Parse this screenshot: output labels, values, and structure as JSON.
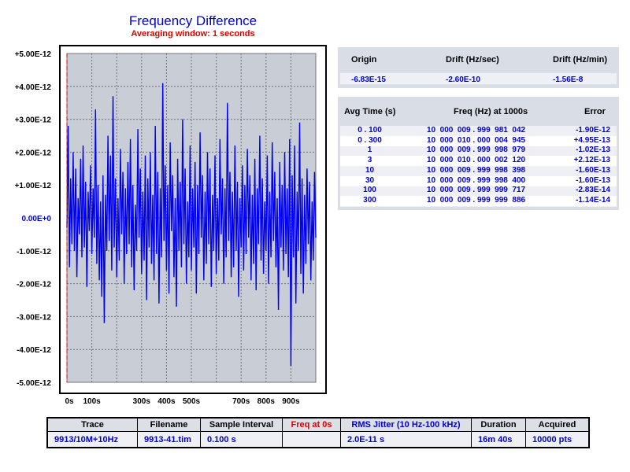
{
  "chart_data": {
    "type": "line",
    "title": "Frequency Difference",
    "subtitle": "Averaging window: 1 seconds",
    "xlabel": "",
    "ylabel": "",
    "xlim": [
      0,
      1000
    ],
    "ylim": [
      -5e-12,
      5e-12
    ],
    "x_tick_labels": [
      "0s",
      "100s",
      "300s",
      "400s",
      "500s",
      "700s",
      "800s",
      "900s"
    ],
    "x_tick_values": [
      0,
      100,
      300,
      400,
      500,
      700,
      800,
      900
    ],
    "y_tick_labels": [
      "+5.00E-12",
      "+4.00E-12",
      "+3.00E-12",
      "+2.00E-12",
      "+1.00E-12",
      "0.00E+0",
      "-1.00E-12",
      "-2.00E-12",
      "-3.00E-12",
      "-4.00E-12",
      "-5.00E-12"
    ],
    "y_tick_values": [
      5e-12,
      4e-12,
      3e-12,
      2e-12,
      1e-12,
      0,
      -1e-12,
      -2e-12,
      -3e-12,
      -4e-12,
      -5e-12
    ],
    "grid": true,
    "marker_line": {
      "x": 0,
      "color": "#dd0000",
      "style": "dashed"
    },
    "series": [
      {
        "color": "#0000ee",
        "x": [
          0,
          5,
          10,
          15,
          20,
          25,
          30,
          35,
          40,
          45,
          50,
          55,
          60,
          65,
          70,
          75,
          80,
          85,
          90,
          95,
          100,
          105,
          110,
          115,
          120,
          125,
          130,
          135,
          140,
          145,
          150,
          155,
          160,
          165,
          170,
          175,
          180,
          185,
          190,
          195,
          200,
          205,
          210,
          215,
          220,
          225,
          230,
          235,
          240,
          245,
          250,
          255,
          260,
          265,
          270,
          275,
          280,
          285,
          290,
          295,
          300,
          305,
          310,
          315,
          320,
          325,
          330,
          335,
          340,
          345,
          350,
          355,
          360,
          365,
          370,
          375,
          380,
          385,
          390,
          395,
          400,
          405,
          410,
          415,
          420,
          425,
          430,
          435,
          440,
          445,
          450,
          455,
          460,
          465,
          470,
          475,
          480,
          485,
          490,
          495,
          500,
          505,
          510,
          515,
          520,
          525,
          530,
          535,
          540,
          545,
          550,
          555,
          560,
          565,
          570,
          575,
          580,
          585,
          590,
          595,
          600,
          605,
          610,
          615,
          620,
          625,
          630,
          635,
          640,
          645,
          650,
          655,
          660,
          665,
          670,
          675,
          680,
          685,
          690,
          695,
          700,
          705,
          710,
          715,
          720,
          725,
          730,
          735,
          740,
          745,
          750,
          755,
          760,
          765,
          770,
          775,
          780,
          785,
          790,
          795,
          800,
          805,
          810,
          815,
          820,
          825,
          830,
          835,
          840,
          845,
          850,
          855,
          860,
          865,
          870,
          875,
          880,
          885,
          890,
          895,
          900,
          905,
          910,
          915,
          920,
          925,
          930,
          935,
          940,
          945,
          950,
          955,
          960,
          965,
          970,
          975,
          980,
          985,
          990,
          995,
          1000
        ],
        "y": [
          -3e-13,
          2.8e-12,
          -1.5e-12,
          1.2e-12,
          -8e-13,
          2e-12,
          -1e-12,
          1.5e-12,
          -1.8e-12,
          6e-13,
          -5e-13,
          1.8e-12,
          -1.2e-12,
          2.2e-12,
          -9e-13,
          1.1e-12,
          -2.1e-12,
          8e-13,
          -4e-13,
          1.6e-12,
          -1.1e-12,
          9e-13,
          -6e-13,
          3.3e-12,
          -1.4e-12,
          1e-12,
          -1.9e-12,
          5e-13,
          -2.4e-12,
          1.3e-12,
          -3.2e-12,
          7e-13,
          -1e-12,
          2.5e-12,
          -7e-13,
          1.9e-12,
          -1.6e-12,
          3.7e-12,
          -9e-13,
          1.2e-12,
          -1.8e-12,
          6e-13,
          -1.3e-12,
          2.1e-12,
          -5e-13,
          1.4e-12,
          -2e-12,
          9e-13,
          -1.1e-12,
          1.7e-12,
          -8e-13,
          2.4e-12,
          -1.5e-12,
          1e-12,
          -2.2e-12,
          4e-13,
          -1e-12,
          2.7e-12,
          -6e-13,
          1.5e-12,
          -1.7e-12,
          8e-13,
          -1.3e-12,
          1.9e-12,
          -2.5e-12,
          1.2e-12,
          -9e-13,
          2e-12,
          -1.4e-12,
          7e-13,
          -1.9e-12,
          2.8e-12,
          -1.1e-12,
          1.4e-12,
          -2.6e-12,
          9e-13,
          -1.2e-12,
          4.1e-12,
          -7e-13,
          1.6e-12,
          -1.6e-12,
          1e-12,
          -2.3e-12,
          2.3e-12,
          -4e-13,
          1.3e-12,
          -1.8e-12,
          6e-13,
          -2.7e-12,
          1.8e-12,
          -1e-12,
          1.1e-12,
          -1.5e-12,
          3e-12,
          -8e-13,
          1.5e-12,
          -2e-12,
          5e-13,
          -1.2e-12,
          2.2e-12,
          -1.6e-12,
          9e-13,
          -9e-13,
          1.7e-12,
          -2.3e-12,
          1e-12,
          -1.1e-12,
          2.6e-12,
          -6e-13,
          1.3e-12,
          -1.9e-12,
          8e-13,
          -1.4e-12,
          2e-12,
          -8e-13,
          1.5e-12,
          -2.1e-12,
          7e-13,
          -1e-12,
          1.9e-12,
          -1.7e-12,
          6e-13,
          -1.3e-12,
          2.4e-12,
          -5e-13,
          1.2e-12,
          -2e-12,
          9e-13,
          -1.2e-12,
          3.5e-12,
          -7e-13,
          1.4e-12,
          -1.8e-12,
          8e-13,
          -1.5e-12,
          2.2e-12,
          -1e-12,
          1.1e-12,
          -2.4e-12,
          6e-13,
          -9e-13,
          1.6e-12,
          -1.6e-12,
          1e-12,
          -1.1e-12,
          2.1e-12,
          -6e-13,
          1.3e-12,
          -1.9e-12,
          7e-13,
          -1.4e-12,
          1.8e-12,
          -2.2e-12,
          9e-13,
          -8e-13,
          2.5e-12,
          -1.3e-12,
          1.2e-12,
          -1.7e-12,
          5e-13,
          -1e-12,
          1.9e-12,
          -2e-12,
          8e-13,
          -1.2e-12,
          2.3e-12,
          -7e-13,
          1.4e-12,
          -1.5e-12,
          6e-13,
          -2.8e-12,
          1.7e-12,
          -9e-13,
          1e-12,
          -1.6e-12,
          2e-12,
          -1.1e-12,
          9e-13,
          -1.8e-12,
          2.4e-12,
          -4.5e-12,
          1.3e-12,
          -1.2e-12,
          2.2e-12,
          -2.6e-12,
          8e-13,
          -1e-12,
          2.9e-12,
          -1.7e-12,
          1.2e-12,
          -2.3e-12,
          7e-13,
          -1.4e-12,
          1.5e-12,
          -8e-13,
          1.1e-12,
          -1.9e-12,
          5e-13,
          -1.3e-12,
          1.4e-12,
          -6e-13
        ]
      }
    ]
  },
  "drift_panel": {
    "headers": [
      "Origin",
      "Drift (Hz/sec)",
      "Drift (Hz/min)"
    ],
    "values": [
      "-6.83E-15",
      "-2.60E-10",
      "-1.56E-8"
    ]
  },
  "adev_panel": {
    "headers": [
      "Avg Time (s)",
      "Freq (Hz) at 1000s",
      "Error"
    ],
    "rows": [
      {
        "tau": "0 . 100",
        "freq": "10  000  009 . 999  981  042",
        "err": "-1.90E-12"
      },
      {
        "tau": "0 . 300",
        "freq": "10  000  010 . 000  004  945",
        "err": "+4.95E-13"
      },
      {
        "tau": "1",
        "freq": "10  000  009 . 999  998  979",
        "err": "-1.02E-13"
      },
      {
        "tau": "3",
        "freq": "10  000  010 . 000  002  120",
        "err": "+2.12E-13"
      },
      {
        "tau": "10",
        "freq": "10  000  009 . 999  998  398",
        "err": "-1.60E-13"
      },
      {
        "tau": "30",
        "freq": "10  000  009 . 999  998  400",
        "err": "-1.60E-13"
      },
      {
        "tau": "100",
        "freq": "10  000  009 . 999  999  717",
        "err": "-2.83E-14"
      },
      {
        "tau": "300",
        "freq": "10  000  009 . 999  999  886",
        "err": "-1.14E-14"
      }
    ]
  },
  "info_table": {
    "headers": [
      "Trace",
      "Filename",
      "Sample Interval",
      "Freq at 0s",
      "RMS Jitter (10 Hz-100 kHz)",
      "Duration",
      "Acquired"
    ],
    "values": [
      "9913/10M+10Hz",
      "9913-41.tim",
      "0.100 s",
      "",
      "2.0E-11 s",
      "16m 40s",
      "10000 pts"
    ],
    "header_colors": [
      "#000000",
      "#000000",
      "#000000",
      "#dd0000",
      "#0000cc",
      "#000000",
      "#000000"
    ]
  }
}
